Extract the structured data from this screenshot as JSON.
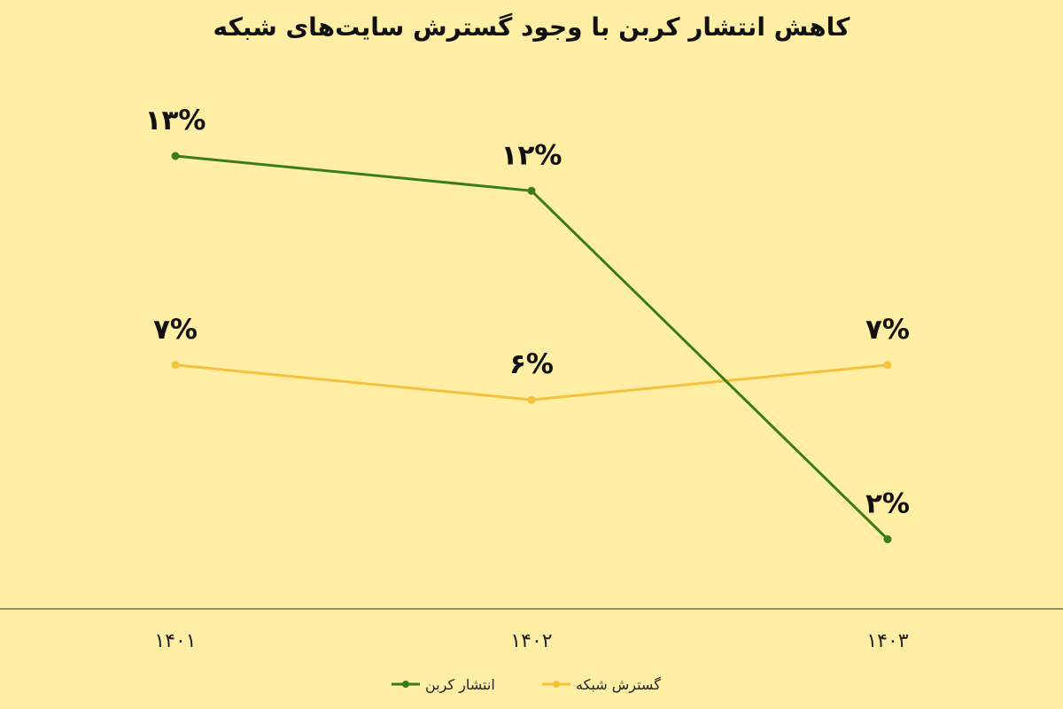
{
  "chart_data": {
    "type": "line",
    "title": "کاهش انتشار کربن با وجود گسترش سایت‌های شبکه",
    "categories": [
      "۱۴۰۱",
      "۱۴۰۲",
      "۱۴۰۳"
    ],
    "series": [
      {
        "name": "انتشار کربن",
        "values": [
          13,
          12,
          2
        ],
        "labels": [
          "۱۳%",
          "۱۲%",
          "۲%"
        ],
        "color": "#3a7d17"
      },
      {
        "name": "گسترش شبکه",
        "values": [
          7,
          6,
          7
        ],
        "labels": [
          "۷%",
          "۶%",
          "۷%"
        ],
        "color": "#f6c13d"
      }
    ],
    "ylim": [
      0,
      14
    ],
    "grid": false,
    "legend": "bottom",
    "colors": {
      "background": "#ffeea3",
      "axis": "#6b6b4a"
    }
  }
}
